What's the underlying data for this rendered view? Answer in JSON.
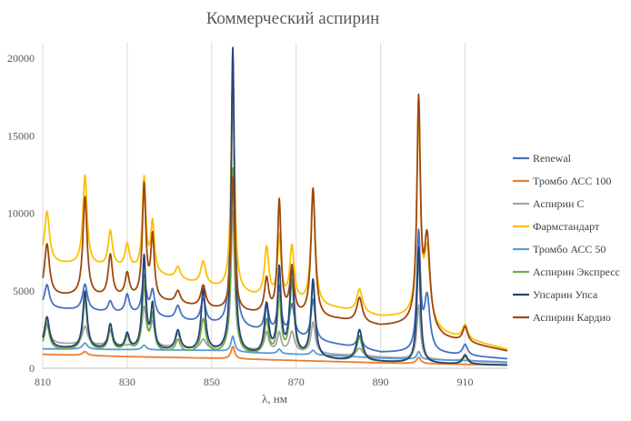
{
  "chart_data": {
    "type": "line",
    "title": "Коммерческий аспирин",
    "xlabel": "λ, нм",
    "ylabel": "",
    "xlim": [
      810,
      920
    ],
    "ylim": [
      0,
      21000
    ],
    "xticks": [
      "810",
      "830",
      "850",
      "870",
      "890",
      "910"
    ],
    "yticks": [
      "0",
      "5000",
      "10000",
      "15000",
      "20000"
    ],
    "grid": "vertical",
    "legend": "right",
    "series": [
      {
        "name": "Renewal",
        "color": "#4472C4",
        "baseline": [
          [
            810,
            3900
          ],
          [
            830,
            3500
          ],
          [
            850,
            2800
          ],
          [
            860,
            2400
          ],
          [
            880,
            1500
          ],
          [
            890,
            1000
          ],
          [
            895,
            1000
          ],
          [
            905,
            900
          ],
          [
            920,
            600
          ]
        ],
        "peaks": [
          [
            811,
            1500,
            0.7
          ],
          [
            820,
            1700,
            0.7
          ],
          [
            826,
            700,
            0.6
          ],
          [
            830,
            1200,
            0.6
          ],
          [
            834,
            2500,
            0.6
          ],
          [
            836,
            1600,
            0.6
          ],
          [
            842,
            900,
            0.7
          ],
          [
            848,
            1500,
            0.7
          ],
          [
            855,
            16500,
            0.5
          ],
          [
            863,
            1800,
            0.6
          ],
          [
            866,
            3000,
            0.5
          ],
          [
            869,
            2000,
            0.7
          ],
          [
            874,
            2600,
            0.6
          ],
          [
            885,
            800,
            0.8
          ],
          [
            899,
            7500,
            0.5
          ],
          [
            901,
            3500,
            0.8
          ],
          [
            910,
            700,
            0.7
          ]
        ]
      },
      {
        "name": "Тромбо АСС 100",
        "color": "#ED7D31",
        "baseline": [
          [
            810,
            900
          ],
          [
            830,
            750
          ],
          [
            850,
            650
          ],
          [
            870,
            500
          ],
          [
            890,
            350
          ],
          [
            910,
            250
          ],
          [
            920,
            200
          ]
        ],
        "peaks": [
          [
            820,
            250,
            0.7
          ],
          [
            855,
            800,
            0.5
          ],
          [
            899,
            400,
            0.6
          ]
        ]
      },
      {
        "name": "Аспирин С",
        "color": "#A5A5A5",
        "baseline": [
          [
            810,
            1600
          ],
          [
            830,
            1400
          ],
          [
            850,
            1200
          ],
          [
            870,
            1000
          ],
          [
            890,
            700
          ],
          [
            910,
            450
          ],
          [
            920,
            350
          ]
        ],
        "peaks": [
          [
            811,
            1400,
            0.7
          ],
          [
            820,
            1200,
            0.7
          ],
          [
            826,
            1000,
            0.6
          ],
          [
            834,
            2500,
            0.6
          ],
          [
            836,
            1500,
            0.6
          ],
          [
            842,
            900,
            0.7
          ],
          [
            848,
            600,
            0.7
          ],
          [
            855,
            9000,
            0.5
          ],
          [
            863,
            1200,
            0.6
          ],
          [
            866,
            1200,
            0.5
          ],
          [
            869,
            1300,
            0.7
          ],
          [
            874,
            2000,
            0.6
          ],
          [
            885,
            500,
            0.8
          ],
          [
            899,
            3500,
            0.5
          ],
          [
            910,
            300,
            0.7
          ]
        ]
      },
      {
        "name": "Фармстандарт",
        "color": "#FFC000",
        "baseline": [
          [
            810,
            6800
          ],
          [
            830,
            6400
          ],
          [
            840,
            5800
          ],
          [
            850,
            5200
          ],
          [
            860,
            4600
          ],
          [
            870,
            4200
          ],
          [
            880,
            3800
          ],
          [
            890,
            3300
          ],
          [
            897,
            3300
          ],
          [
            905,
            2200
          ],
          [
            920,
            1200
          ]
        ],
        "peaks": [
          [
            811,
            3300,
            0.7
          ],
          [
            820,
            5800,
            0.6
          ],
          [
            826,
            2300,
            0.6
          ],
          [
            830,
            1500,
            0.6
          ],
          [
            834,
            6000,
            0.5
          ],
          [
            836,
            3200,
            0.5
          ],
          [
            842,
            800,
            0.7
          ],
          [
            848,
            1500,
            0.7
          ],
          [
            855,
            14000,
            0.5
          ],
          [
            863,
            3200,
            0.6
          ],
          [
            866,
            4000,
            0.5
          ],
          [
            869,
            3500,
            0.6
          ],
          [
            874,
            7300,
            0.6
          ],
          [
            885,
            1500,
            0.8
          ],
          [
            899,
            13500,
            0.5
          ],
          [
            901,
            4500,
            0.8
          ],
          [
            910,
            900,
            0.7
          ]
        ]
      },
      {
        "name": "Тромбо АСС 50",
        "color": "#5B9BD5",
        "baseline": [
          [
            810,
            1250
          ],
          [
            830,
            1200
          ],
          [
            850,
            1150
          ],
          [
            860,
            1000
          ],
          [
            870,
            900
          ],
          [
            880,
            800
          ],
          [
            890,
            650
          ],
          [
            910,
            500
          ],
          [
            920,
            400
          ]
        ],
        "peaks": [
          [
            820,
            400,
            0.7
          ],
          [
            834,
            300,
            0.6
          ],
          [
            855,
            1000,
            0.5
          ],
          [
            866,
            300,
            0.5
          ],
          [
            874,
            300,
            0.6
          ],
          [
            899,
            500,
            0.5
          ]
        ]
      },
      {
        "name": "Аспирин Экспресс",
        "color": "#70AD47",
        "baseline": [
          [
            810,
            1200
          ],
          [
            830,
            1100
          ],
          [
            850,
            900
          ],
          [
            870,
            700
          ],
          [
            880,
            500
          ],
          [
            890,
            400
          ],
          [
            900,
            300
          ],
          [
            910,
            250
          ],
          [
            920,
            200
          ]
        ],
        "peaks": [
          [
            811,
            1600,
            0.7
          ],
          [
            820,
            3300,
            0.6
          ],
          [
            826,
            1300,
            0.6
          ],
          [
            830,
            900,
            0.6
          ],
          [
            834,
            4500,
            0.5
          ],
          [
            836,
            2300,
            0.5
          ],
          [
            842,
            800,
            0.7
          ],
          [
            848,
            2200,
            0.7
          ],
          [
            855,
            12000,
            0.5
          ],
          [
            863,
            2200,
            0.6
          ],
          [
            866,
            3800,
            0.5
          ],
          [
            869,
            4800,
            0.6
          ],
          [
            874,
            4800,
            0.6
          ],
          [
            885,
            1500,
            0.8
          ],
          [
            899,
            7000,
            0.5
          ],
          [
            910,
            500,
            0.7
          ]
        ]
      },
      {
        "name": "Упсарин Упса",
        "color": "#264478",
        "baseline": [
          [
            810,
            1300
          ],
          [
            830,
            1150
          ],
          [
            850,
            1000
          ],
          [
            860,
            800
          ],
          [
            870,
            700
          ],
          [
            880,
            500
          ],
          [
            890,
            400
          ],
          [
            900,
            300
          ],
          [
            910,
            250
          ],
          [
            920,
            200
          ]
        ],
        "peaks": [
          [
            811,
            2000,
            0.7
          ],
          [
            820,
            3700,
            0.6
          ],
          [
            826,
            1600,
            0.6
          ],
          [
            830,
            1000,
            0.6
          ],
          [
            834,
            6000,
            0.5
          ],
          [
            836,
            2800,
            0.5
          ],
          [
            842,
            1300,
            0.7
          ],
          [
            848,
            4000,
            0.6
          ],
          [
            855,
            19700,
            0.45
          ],
          [
            863,
            3200,
            0.6
          ],
          [
            866,
            5500,
            0.5
          ],
          [
            869,
            5700,
            0.6
          ],
          [
            874,
            5000,
            0.6
          ],
          [
            885,
            2000,
            0.8
          ],
          [
            899,
            7500,
            0.5
          ],
          [
            910,
            600,
            0.7
          ]
        ]
      },
      {
        "name": "Аспирин Кардио",
        "color": "#9E480E",
        "baseline": [
          [
            810,
            4700
          ],
          [
            830,
            4500
          ],
          [
            840,
            4200
          ],
          [
            850,
            3800
          ],
          [
            860,
            3500
          ],
          [
            870,
            3300
          ],
          [
            880,
            3100
          ],
          [
            890,
            2700
          ],
          [
            897,
            2800
          ],
          [
            905,
            1900
          ],
          [
            920,
            1100
          ]
        ],
        "peaks": [
          [
            811,
            3300,
            0.7
          ],
          [
            820,
            6400,
            0.6
          ],
          [
            826,
            2700,
            0.6
          ],
          [
            830,
            1500,
            0.6
          ],
          [
            834,
            7300,
            0.5
          ],
          [
            836,
            4000,
            0.5
          ],
          [
            842,
            800,
            0.7
          ],
          [
            848,
            1400,
            0.7
          ],
          [
            855,
            8600,
            0.5
          ],
          [
            863,
            2200,
            0.6
          ],
          [
            866,
            7300,
            0.5
          ],
          [
            869,
            3000,
            0.6
          ],
          [
            874,
            8300,
            0.6
          ],
          [
            885,
            1600,
            0.8
          ],
          [
            899,
            14300,
            0.5
          ],
          [
            901,
            5700,
            0.8
          ],
          [
            910,
            1000,
            0.7
          ]
        ]
      }
    ]
  }
}
